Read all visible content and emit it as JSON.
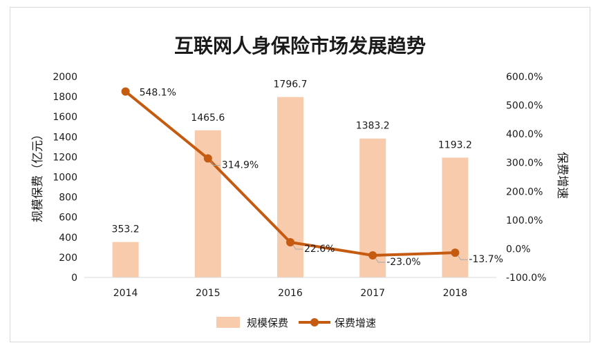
{
  "chart_data": {
    "type": "bar+line",
    "title": "互联网人身保险市场发展趋势",
    "categories": [
      "2014",
      "2015",
      "2016",
      "2017",
      "2018"
    ],
    "series": [
      {
        "name": "规模保费",
        "type": "bar",
        "axis": "left",
        "values": [
          353.2,
          1465.6,
          1796.7,
          1383.2,
          1193.2
        ],
        "labels": [
          "353.2",
          "1465.6",
          "1796.7",
          "1383.2",
          "1193.2"
        ],
        "color": "#f8cbad"
      },
      {
        "name": "保费增速",
        "type": "line",
        "axis": "right",
        "values": [
          548.1,
          314.9,
          22.6,
          -23.0,
          -13.7
        ],
        "labels": [
          "548.1%",
          "314.9%",
          "22.6%",
          "-23.0%",
          "-13.7%"
        ],
        "color": "#c55a11"
      }
    ],
    "y_left": {
      "label": "规模保费（亿元）",
      "range": [
        0,
        2000
      ],
      "ticks": [
        0,
        200,
        400,
        600,
        800,
        1000,
        1200,
        1400,
        1600,
        1800,
        2000
      ],
      "tick_labels": [
        "0",
        "200",
        "400",
        "600",
        "800",
        "1000",
        "1200",
        "1400",
        "1600",
        "1800",
        "2000"
      ]
    },
    "y_right": {
      "label": "保费增速",
      "range": [
        -100,
        600
      ],
      "ticks": [
        -100,
        0,
        100,
        200,
        300,
        400,
        500,
        600
      ],
      "tick_labels": [
        "-100.0%",
        "0.0%",
        "100.0%",
        "200.0%",
        "300.0%",
        "400.0%",
        "500.0%",
        "600.0%"
      ]
    },
    "grid": false,
    "legend": "bottom",
    "legend_items": [
      "规模保费",
      "保费增速"
    ]
  }
}
